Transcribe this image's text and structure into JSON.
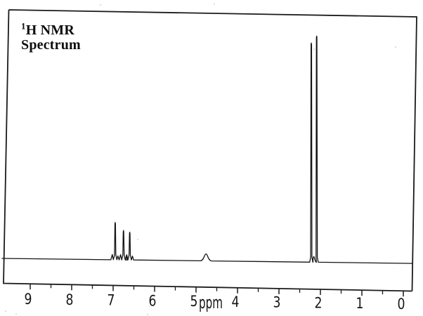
{
  "figure": {
    "title_sup": "1",
    "title_line1": "H NMR",
    "title_line2": "Spectrum"
  },
  "axis": {
    "unit_label": "ppm",
    "tick_labels": [
      "9",
      "8",
      "7",
      "6",
      "5",
      "4",
      "3",
      "2",
      "1",
      "0"
    ]
  },
  "chart_data": {
    "type": "line",
    "title": "1H NMR Spectrum",
    "xlabel": "ppm",
    "x_axis": {
      "unit": "ppm",
      "min": 0,
      "max": 9.7,
      "reversed": true,
      "major_ticks": [
        9,
        8,
        7,
        6,
        5,
        4,
        3,
        2,
        1,
        0
      ],
      "minor_tick_step": 0.5
    },
    "y_axis": {
      "visible": false,
      "note": "relative intensity, unlabeled"
    },
    "grid": false,
    "legend": false,
    "baseline_intensity": 0,
    "peaks": [
      {
        "ppm": 6.95,
        "rel_height": 0.165,
        "shape": "sharp",
        "multiplet_feet": true
      },
      {
        "ppm": 6.75,
        "rel_height": 0.13,
        "shape": "sharp",
        "multiplet_feet": true
      },
      {
        "ppm": 6.6,
        "rel_height": 0.123,
        "shape": "sharp",
        "multiplet_feet": true
      },
      {
        "ppm": 4.76,
        "rel_height": 0.031,
        "shape": "broad",
        "half_width_ppm": 0.13
      },
      {
        "ppm": 2.22,
        "rel_height": 0.969,
        "shape": "sharp"
      },
      {
        "ppm": 2.16,
        "rel_height": 0.025,
        "shape": "broad",
        "half_width_ppm": 0.06
      },
      {
        "ppm": 2.09,
        "rel_height": 1.0,
        "shape": "sharp"
      }
    ]
  }
}
